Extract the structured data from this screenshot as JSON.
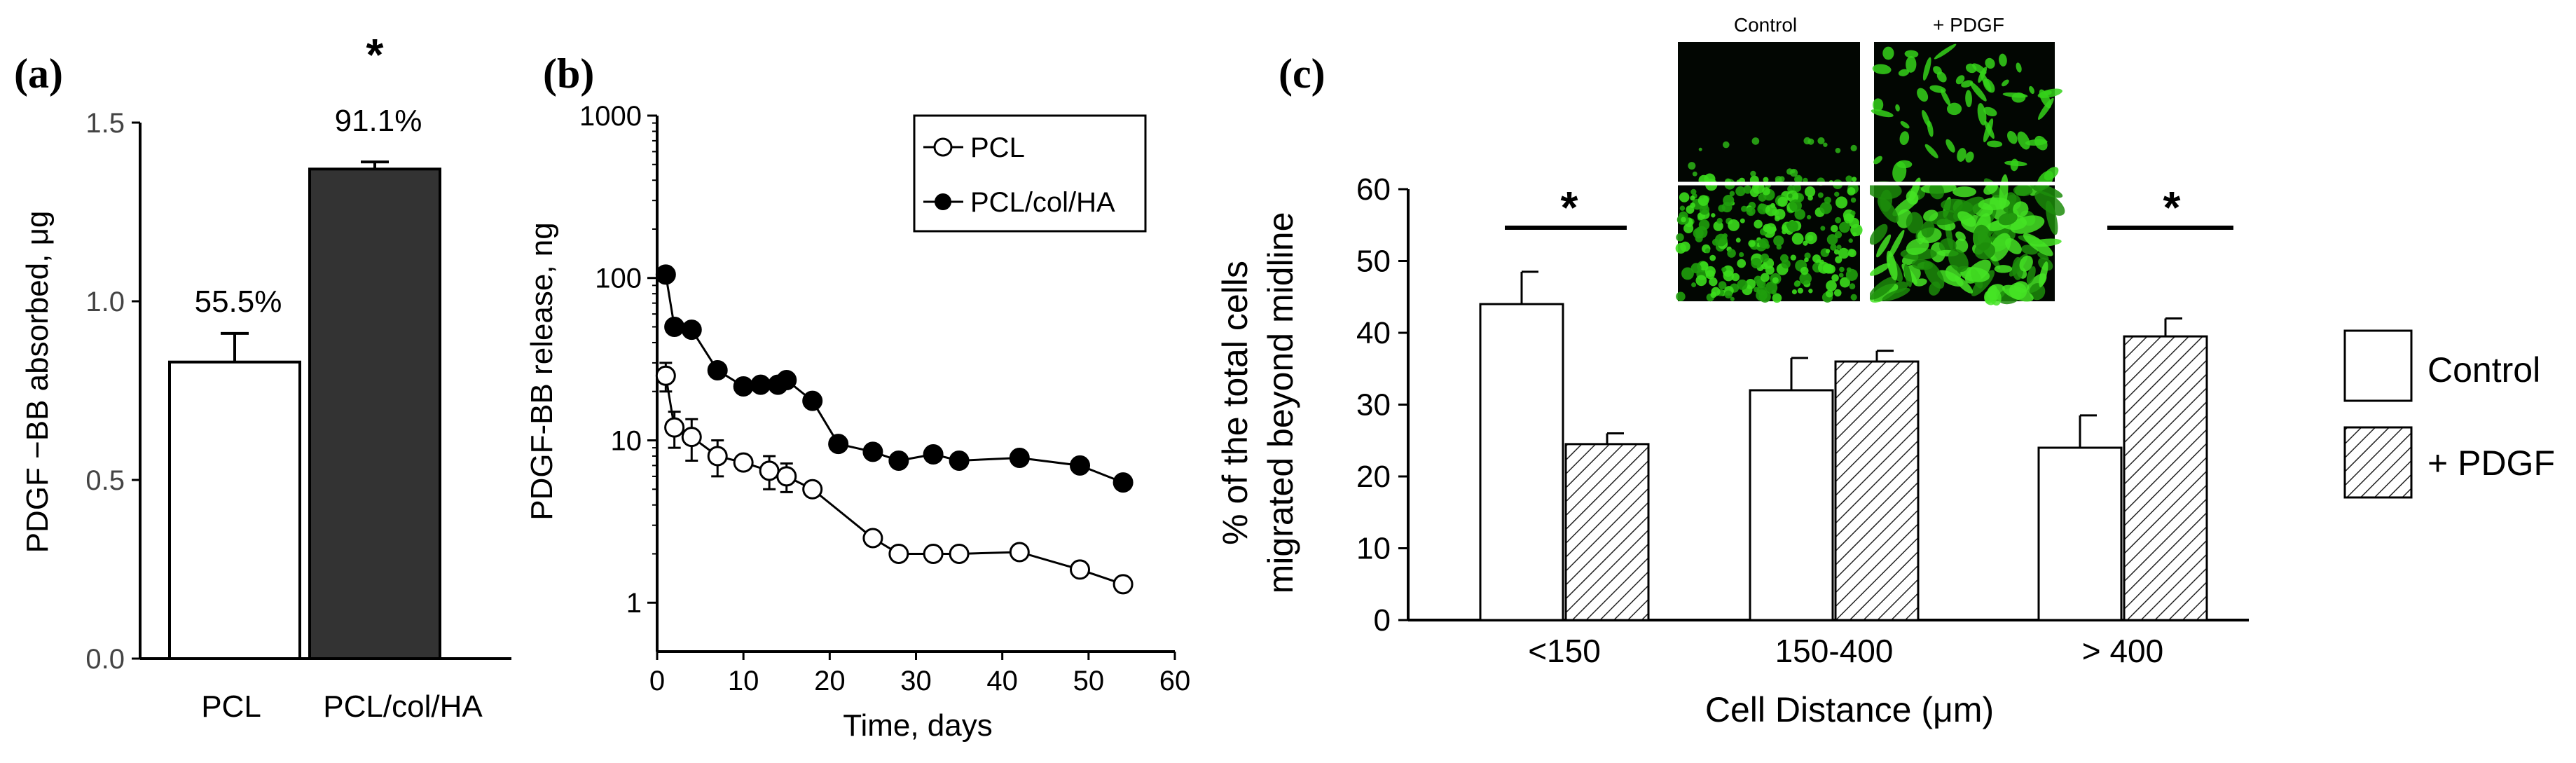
{
  "chart_data": [
    {
      "panel": "(a)",
      "type": "bar",
      "categories": [
        "PCL",
        "PCL/col/HA"
      ],
      "values": [
        0.83,
        1.37
      ],
      "errors": [
        0.08,
        0.02
      ],
      "colors": [
        "#ffffff",
        "#333333"
      ],
      "bar_labels": [
        "55.5%",
        "91.1%"
      ],
      "significance": "*",
      "ylabel": "PDGF −BB absorbed, μg",
      "ylim": [
        0.0,
        1.5
      ],
      "yticks": [
        "0.0",
        "0.5",
        "1.0",
        "1.5"
      ]
    },
    {
      "panel": "(b)",
      "type": "line",
      "yscale": "log",
      "xlabel": "Time, days",
      "ylabel": "PDGF-BB release, ng",
      "xlim": [
        0,
        60
      ],
      "ylim": [
        0.5,
        1000
      ],
      "xticks": [
        "0",
        "10",
        "20",
        "30",
        "40",
        "50",
        "60"
      ],
      "yticks": [
        "1",
        "10",
        "100",
        "1000"
      ],
      "series": [
        {
          "name": "PCL",
          "marker": "open-circle",
          "x": [
            1,
            2,
            4,
            7,
            10,
            13,
            15,
            18,
            25,
            28,
            32,
            35,
            42,
            49,
            54
          ],
          "y": [
            25,
            12,
            10.5,
            8,
            7.3,
            6.5,
            6,
            5,
            2.5,
            2,
            2,
            2,
            2.05,
            1.6,
            1.3
          ],
          "err": [
            5,
            3,
            3,
            2,
            0.5,
            1.5,
            1.2,
            0.3,
            0.2,
            0.1,
            0.1,
            0.1,
            0.1,
            0.1,
            0.1
          ]
        },
        {
          "name": "PCL/col/HA",
          "marker": "filled-circle",
          "x": [
            1,
            2,
            4,
            7,
            10,
            12,
            14,
            15,
            18,
            21,
            25,
            28,
            32,
            35,
            42,
            49,
            54
          ],
          "y": [
            105,
            50,
            48,
            27,
            21.5,
            22,
            22,
            23.5,
            17.5,
            9.5,
            8.5,
            7.5,
            8.2,
            7.5,
            7.8,
            7,
            5.5
          ]
        }
      ],
      "legend": [
        "PCL",
        "PCL/col/HA"
      ]
    },
    {
      "panel": "(c)",
      "type": "bar",
      "categories": [
        "<150",
        "150-400",
        "> 400"
      ],
      "series": [
        {
          "name": "Control",
          "values": [
            44,
            32,
            24
          ],
          "errors": [
            4.5,
            4.5,
            4.5
          ],
          "fill": "white"
        },
        {
          "name": "+ PDGF",
          "values": [
            24.5,
            36,
            39.5
          ],
          "errors": [
            1.5,
            1.5,
            2.5
          ],
          "fill": "hatched"
        }
      ],
      "significance": [
        "*",
        "",
        "*"
      ],
      "xlabel": "Cell Distance (μm)",
      "ylabel_lines": [
        "% of the total cells",
        "migrated beyond midline"
      ],
      "ylim": [
        0,
        60
      ],
      "yticks": [
        "0",
        "10",
        "20",
        "30",
        "40",
        "50",
        "60"
      ],
      "inset_labels": [
        "Control",
        "+ PDGF"
      ],
      "legend": [
        "Control",
        "+ PDGF"
      ]
    }
  ]
}
